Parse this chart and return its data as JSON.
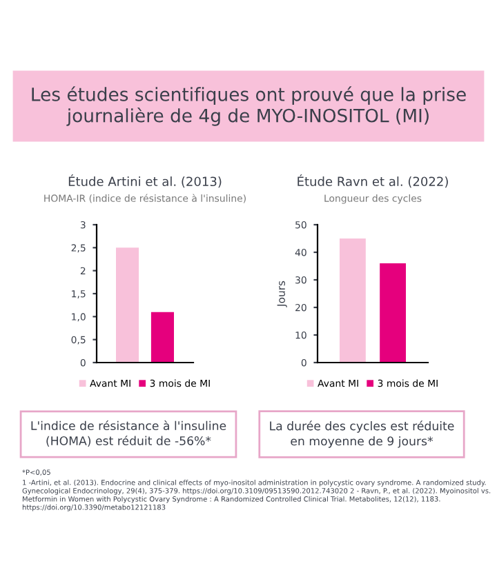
{
  "chart_data": [
    {
      "type": "other",
      "title": "Les études scientifiques ont prouvé que la prise journalière de 4g de MYO-INOSITOL (MI)",
      "annotations": [
        "L'indice de résistance à l'insuline\n(HOMA) est réduit de -56%*",
        "La durée des cycles est réduite\nen moyenne de 9 jours*",
        "*P<0,05",
        "1 -Artini, et al. (2013). Endocrine and clinical effects of myo-inositol administration in polycystic ovary syndrome. A randomized study. Gynecological Endocrinology, 29(4), 375-379. https://doi.org/10.3109/09513590.2012.743020 2 - Ravn, P., et al. (2022). Myoinositol vs. Metformin in Women with Polycystic Ovary Syndrome : A Randomized Controlled Clinical Trial. Metabolites, 12(12), 1183. https://doi.org/10.3390/metabo12121183"
      ]
    },
    {
      "type": "bar",
      "title": "Étude Artini et al. (2013)",
      "subtitle": "HOMA-IR (indice de résistance à l'insuline)",
      "categories": [
        null
      ],
      "series": [
        {
          "name": "Avant MI",
          "color": "#f8c1da",
          "values": [
            2.5
          ]
        },
        {
          "name": "3 mois de MI",
          "color": "#e5007d",
          "values": [
            1.1
          ]
        }
      ],
      "ylim": [
        0,
        3
      ],
      "yticks": [
        0,
        {
          "value": 0.5,
          "label": "0,5"
        },
        {
          "value": 1,
          "label": "1,0"
        },
        {
          "value": 1.5,
          "label": "1,5"
        },
        2,
        {
          "value": 2.5,
          "label": "2,5"
        },
        3
      ],
      "grid": false,
      "legend": "bottom"
    },
    {
      "type": "bar",
      "title": "Étude Ravn et al. (2022)",
      "subtitle": "Longueur des cycles",
      "ylabel": "Jours",
      "categories": [
        null
      ],
      "series": [
        {
          "name": "Avant MI",
          "color": "#f8c1da",
          "values": [
            45
          ]
        },
        {
          "name": "3 mois de MI",
          "color": "#e5007d",
          "values": [
            36
          ]
        }
      ],
      "ylim": [
        0,
        50
      ],
      "yticks": [
        0,
        10,
        20,
        30,
        40,
        50
      ],
      "grid": false,
      "legend": "bottom"
    }
  ]
}
